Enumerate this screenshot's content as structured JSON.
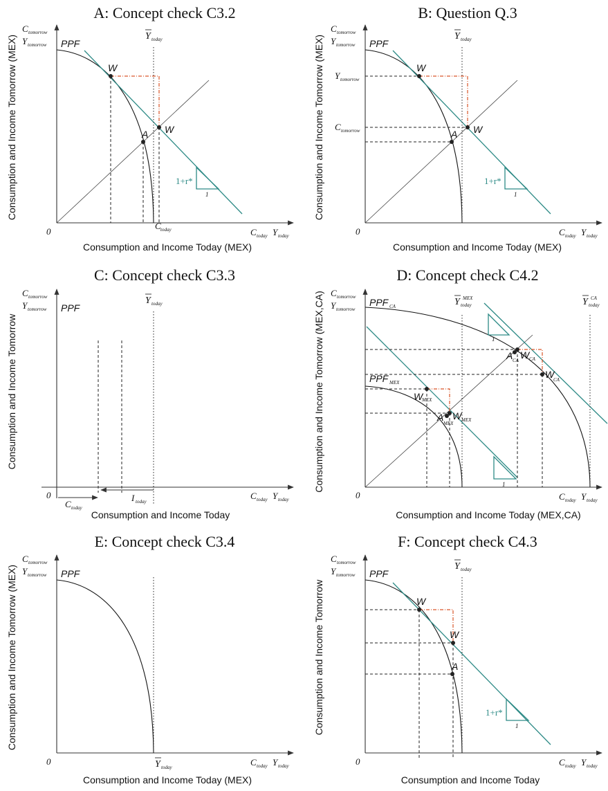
{
  "panels": {
    "A": {
      "title": "A: Concept check C3.2",
      "ylabel": "Consumption and Income Tomorrow (MEX)",
      "xlabel": "Consumption and Income Today (MEX)",
      "c_tomorrow": "C",
      "c_tomorrow_sub": "tomorrow",
      "y_tomorrow": "Y",
      "y_tomorrow_sub": "tomorrow",
      "ppf": "PPF",
      "ybar": "Y",
      "ybar_sub": "today",
      "origin": "0",
      "x_end_c": "C",
      "x_end_y": "Y",
      "x_sub": "today",
      "c_today": "C",
      "c_today_sub": "today",
      "point_w1": "W",
      "point_w2": "W",
      "point_a": "A",
      "slope_label": "1+r*",
      "slope_one": "1"
    },
    "B": {
      "title": "B: Question Q.3",
      "ylabel": "Consumption and Income Tomorrow (MEX)",
      "xlabel": "Consumption and Income Today (MEX)",
      "y_tomorrow_tick": "Y",
      "y_tomorrow_tick_sub": "tomorrow",
      "c_tomorrow_tick": "C",
      "c_tomorrow_tick_sub": "tomorrow",
      "ppf": "PPF",
      "point_w1": "W",
      "point_w2": "W",
      "point_a": "A",
      "slope_label": "1+r*",
      "slope_one": "1"
    },
    "C": {
      "title": "C: Concept check C3.3",
      "ylabel": "Consumption and Income Tomorrow",
      "xlabel": "Consumption and Income Today",
      "ppf": "PPF",
      "c_today": "C",
      "c_today_sub": "today",
      "i_today": "I",
      "i_today_sub": "today"
    },
    "D": {
      "title": "D: Concept check C4.2",
      "ylabel": "Consumption and Income Tomorrow (MEX,CA)",
      "xlabel": "Consumption and Income Today (MEX,CA)",
      "ppf_ca": "PPF",
      "ppf_ca_sub": "CA",
      "ppf_mex": "PPF",
      "ppf_mex_sub": "MEX",
      "ybar_mex_sup": "MEX",
      "ybar_ca_sup": "CA",
      "point_w_mex": "W",
      "point_w_mex_sub": "MEX",
      "point_a_mex": "A",
      "point_a_mex_sub": "MEX",
      "point_w2_mex": "W",
      "point_w2_mex_sub": "MEX",
      "point_a_ca": "A",
      "point_a_ca_sub": "CA",
      "point_w_ca": "W",
      "point_w_ca_sub": "CA",
      "point_w2_ca": "W",
      "point_w2_ca_sub": "CA",
      "slope_one": "1"
    },
    "E": {
      "title": "E: Concept check C3.4",
      "ylabel": "Consumption and Income Tomorrow (MEX)",
      "xlabel": "Consumption and Income Today (MEX)",
      "ppf": "PPF"
    },
    "F": {
      "title": "F: Concept check C4.3",
      "ylabel": "Consumption and Income Tomorrow",
      "xlabel": "Consumption and Income Today",
      "ppf": "PPF",
      "point_w1": "W",
      "point_w2": "W",
      "point_a": "A",
      "slope_label": "1+r*",
      "slope_one": "1"
    }
  },
  "colors": {
    "teal": "#2d8a86",
    "orange": "#d9562a"
  }
}
